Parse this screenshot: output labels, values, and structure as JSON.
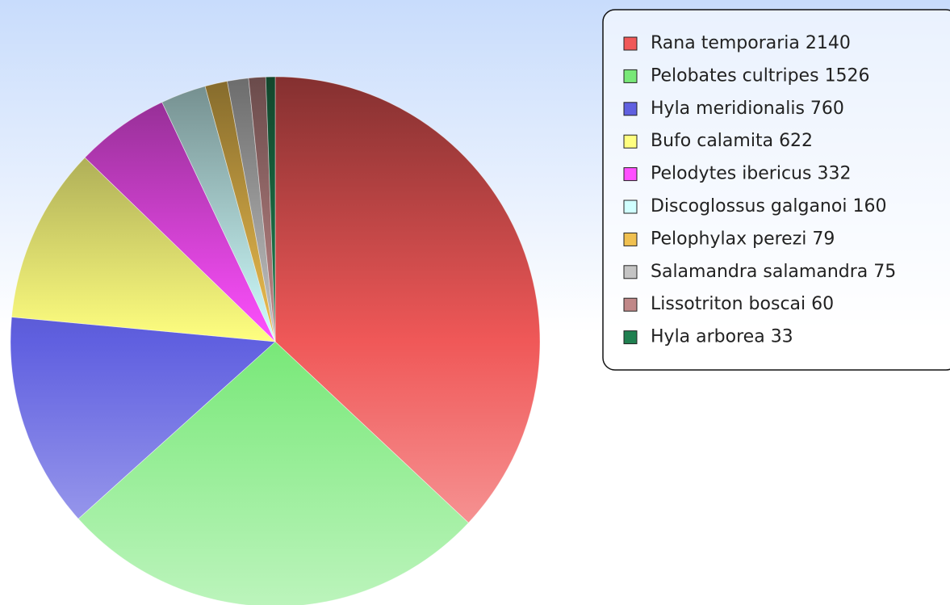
{
  "chart_data": {
    "type": "pie",
    "categories": [
      "Rana temporaria",
      "Pelobates cultripes",
      "Hyla meridionalis",
      "Bufo calamita",
      "Pelodytes ibericus",
      "Discoglossus galganoi",
      "Pelophylax perezi",
      "Salamandra salamandra",
      "Lissotriton boscai",
      "Hyla arborea"
    ],
    "values": [
      2140,
      1526,
      760,
      622,
      332,
      160,
      79,
      75,
      60,
      33
    ],
    "colors": [
      "#f05858",
      "#78e878",
      "#6060e0",
      "#ffff80",
      "#ff50ff",
      "#d0ffff",
      "#f0c050",
      "#c4c4c4",
      "#c08888",
      "#208050"
    ],
    "legend": "right"
  }
}
